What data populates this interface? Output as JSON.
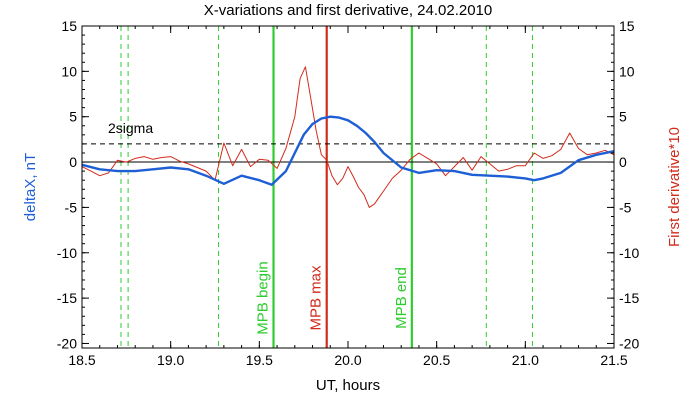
{
  "chart_data": {
    "type": "line",
    "title": "X-variations and first derivative, 24.02.2010",
    "xlabel": "UT, hours",
    "ylabel_left": "deltaX, nT",
    "ylabel_right": "First derivative*10",
    "xlim": [
      18.5,
      21.5
    ],
    "ylim": [
      -20.5,
      15
    ],
    "xticks": [
      18.5,
      19.0,
      19.5,
      20.0,
      20.5,
      21.0,
      21.5
    ],
    "xtick_labels": [
      "18.5",
      "19.0",
      "19.5",
      "20.0",
      "20.5",
      "21.0",
      "21.5"
    ],
    "yticks": [
      15,
      10,
      5,
      0,
      -5,
      -10,
      -15,
      -20
    ],
    "ytick_labels": [
      "15",
      "10",
      "5",
      "0",
      "-5",
      "-10",
      "-15",
      "-20"
    ],
    "threshold": {
      "label": "2sigma",
      "value": 2
    },
    "series": [
      {
        "color": "#1f5fd6",
        "x": [
          18.5,
          18.6,
          18.7,
          18.8,
          18.9,
          19.0,
          19.1,
          19.2,
          19.3,
          19.4,
          19.5,
          19.57,
          19.65,
          19.7,
          19.75,
          19.8,
          19.85,
          19.9,
          19.95,
          20.0,
          20.05,
          20.1,
          20.15,
          20.2,
          20.3,
          20.4,
          20.5,
          20.6,
          20.7,
          20.8,
          20.9,
          21.0,
          21.05,
          21.1,
          21.2,
          21.3,
          21.4,
          21.5
        ],
        "values": [
          -0.3,
          -0.8,
          -1.0,
          -1.0,
          -0.8,
          -0.6,
          -0.8,
          -1.5,
          -2.4,
          -1.5,
          -2.0,
          -2.5,
          -1.0,
          1.0,
          3.0,
          4.2,
          4.8,
          5.0,
          4.9,
          4.6,
          4.0,
          3.2,
          2.2,
          1.0,
          -0.6,
          -1.2,
          -0.9,
          -1.0,
          -1.4,
          -1.5,
          -1.6,
          -1.8,
          -2.0,
          -1.8,
          -1.2,
          0.2,
          0.8,
          1.2
        ]
      },
      {
        "color": "#d22b1b",
        "x": [
          18.5,
          18.55,
          18.6,
          18.65,
          18.7,
          18.75,
          18.8,
          18.85,
          18.9,
          18.95,
          19.0,
          19.05,
          19.1,
          19.15,
          19.2,
          19.25,
          19.3,
          19.35,
          19.4,
          19.45,
          19.5,
          19.55,
          19.6,
          19.65,
          19.7,
          19.73,
          19.76,
          19.79,
          19.82,
          19.85,
          19.88,
          19.91,
          19.94,
          19.97,
          20.0,
          20.03,
          20.06,
          20.09,
          20.12,
          20.15,
          20.2,
          20.25,
          20.3,
          20.35,
          20.4,
          20.45,
          20.5,
          20.55,
          20.6,
          20.65,
          20.7,
          20.75,
          20.8,
          20.85,
          20.9,
          20.95,
          21.0,
          21.05,
          21.1,
          21.15,
          21.2,
          21.25,
          21.3,
          21.35,
          21.4,
          21.45,
          21.5
        ],
        "values": [
          -0.5,
          -1.0,
          -1.5,
          -1.2,
          0.2,
          0.0,
          0.4,
          0.6,
          0.3,
          0.5,
          0.6,
          0.1,
          -0.2,
          -0.6,
          -1.0,
          -2.0,
          2.1,
          -0.4,
          1.4,
          -0.5,
          0.3,
          0.2,
          -0.7,
          1.5,
          5.0,
          9.2,
          10.5,
          7.0,
          3.5,
          0.8,
          0.2,
          -1.5,
          -2.5,
          -1.8,
          -0.5,
          -1.6,
          -2.8,
          -3.6,
          -5.0,
          -4.6,
          -3.2,
          -1.8,
          -0.9,
          0.3,
          1.0,
          0.4,
          -0.2,
          -1.5,
          -0.5,
          0.5,
          -0.9,
          0.6,
          -0.2,
          -1.0,
          -0.8,
          -0.4,
          -0.4,
          1.0,
          0.4,
          0.7,
          1.4,
          3.2,
          1.5,
          0.8,
          1.0,
          1.3,
          0.8
        ]
      }
    ],
    "vlines": [
      {
        "x": 18.72,
        "style": "dashed",
        "color": "#2ecc2e"
      },
      {
        "x": 18.76,
        "style": "dashed",
        "color": "#2ecc2e"
      },
      {
        "x": 19.27,
        "style": "dashed",
        "color": "#2ecc2e"
      },
      {
        "x": 19.58,
        "style": "solid",
        "color": "#2ecc2e",
        "label": "MPB begin"
      },
      {
        "x": 19.88,
        "style": "solid",
        "color": "#d22b1b",
        "label": "MPB max"
      },
      {
        "x": 20.36,
        "style": "solid",
        "color": "#2ecc2e",
        "label": "MPB end"
      },
      {
        "x": 20.78,
        "style": "dashed",
        "color": "#2ecc2e"
      },
      {
        "x": 21.04,
        "style": "dashed",
        "color": "#2ecc2e"
      }
    ],
    "colors": {
      "left_axis_label": "#1f5fd6",
      "right_axis_label": "#d22b1b",
      "marker_green": "#2ecc2e",
      "marker_red": "#d22b1b"
    },
    "grid": false
  }
}
